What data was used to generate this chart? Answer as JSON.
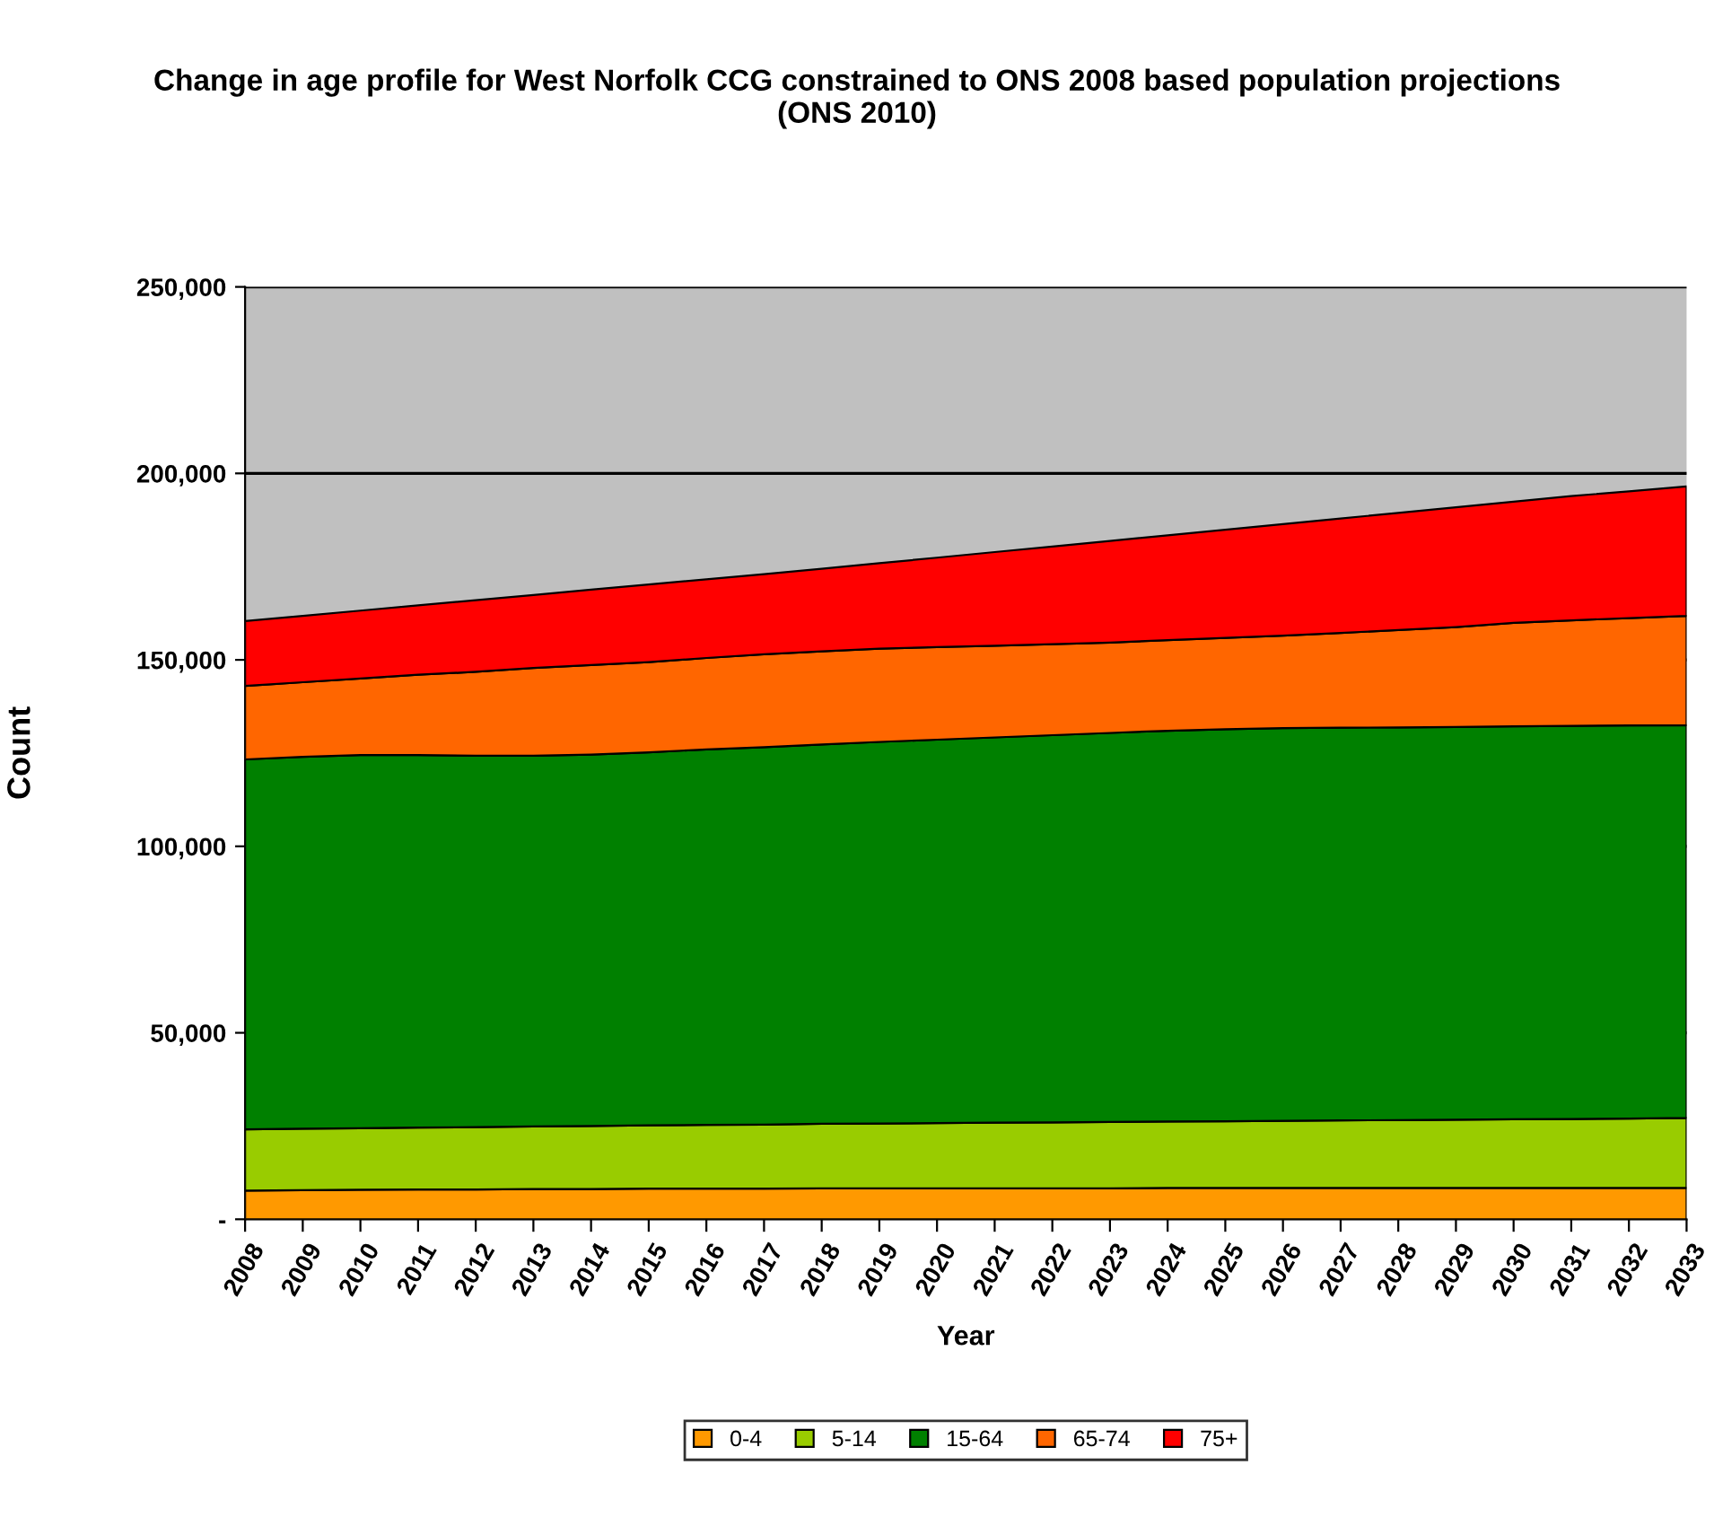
{
  "chart_data": {
    "type": "area",
    "stacked": true,
    "title": "Change in age profile for West Norfolk CCG constrained to ONS 2008 based population projections\n(ONS 2010)",
    "xlabel": "Year",
    "ylabel": "Count",
    "categories": [
      "2008",
      "2009",
      "2010",
      "2011",
      "2012",
      "2013",
      "2014",
      "2015",
      "2016",
      "2017",
      "2018",
      "2019",
      "2020",
      "2021",
      "2022",
      "2023",
      "2024",
      "2025",
      "2026",
      "2027",
      "2028",
      "2029",
      "2030",
      "2031",
      "2032",
      "2033"
    ],
    "series": [
      {
        "name": "0-4",
        "color": "#ff9900",
        "values": [
          7700,
          7800,
          7900,
          8000,
          8000,
          8100,
          8100,
          8200,
          8200,
          8200,
          8300,
          8300,
          8300,
          8300,
          8300,
          8300,
          8400,
          8400,
          8400,
          8400,
          8400,
          8400,
          8400,
          8400,
          8400,
          8400
        ]
      },
      {
        "name": "5-14",
        "color": "#99cc00",
        "values": [
          16400,
          16500,
          16500,
          16600,
          16700,
          16800,
          16900,
          17000,
          17100,
          17200,
          17300,
          17400,
          17500,
          17600,
          17700,
          17800,
          17800,
          17900,
          18000,
          18100,
          18200,
          18300,
          18400,
          18500,
          18600,
          18800
        ]
      },
      {
        "name": "15-64",
        "color": "#008000",
        "values": [
          99200,
          99700,
          100100,
          99900,
          99600,
          99400,
          99600,
          100000,
          100700,
          101200,
          101700,
          102300,
          102800,
          103300,
          103800,
          104300,
          104800,
          105100,
          105300,
          105300,
          105300,
          105300,
          105400,
          105400,
          105400,
          105300
        ]
      },
      {
        "name": "65-74",
        "color": "#ff6600",
        "values": [
          19700,
          20000,
          20500,
          21500,
          22500,
          23500,
          24000,
          24200,
          24500,
          24900,
          25000,
          25000,
          24800,
          24600,
          24400,
          24200,
          24300,
          24500,
          24800,
          25400,
          26100,
          26800,
          27700,
          28300,
          28800,
          29300
        ]
      },
      {
        "name": "75+",
        "color": "#ff0000",
        "values": [
          17400,
          17800,
          18200,
          18600,
          19200,
          19600,
          20200,
          20800,
          21100,
          21500,
          22100,
          22900,
          24000,
          25100,
          26200,
          27300,
          28100,
          29000,
          29900,
          30700,
          31400,
          32100,
          32500,
          33300,
          34000,
          34700
        ]
      }
    ],
    "ylim": [
      0,
      250000
    ],
    "yticks": [
      {
        "value": 0,
        "label": "-"
      },
      {
        "value": 50000,
        "label": "50,000"
      },
      {
        "value": 100000,
        "label": "100,000"
      },
      {
        "value": 150000,
        "label": "150,000"
      },
      {
        "value": 200000,
        "label": "200,000"
      },
      {
        "value": 250000,
        "label": "250,000"
      }
    ],
    "grid": "y",
    "legend": "bottom"
  }
}
